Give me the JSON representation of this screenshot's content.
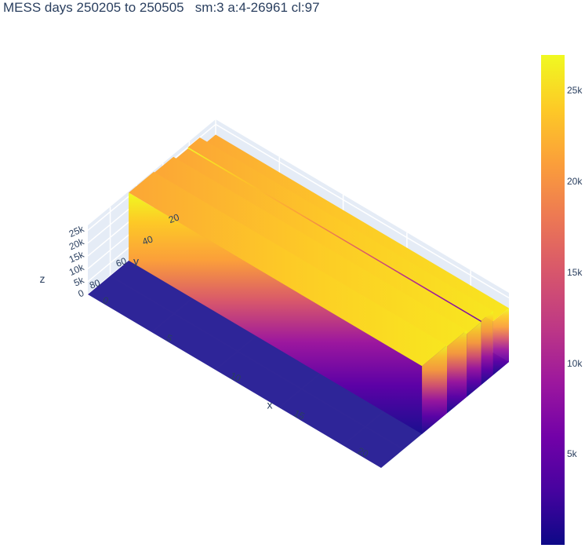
{
  "title": "MESS days 250205 to 250505   sm:3 a:4-26961 cl:97",
  "chart_data": {
    "type": "surface",
    "title": "MESS days 250205 to 250505   sm:3 a:4-26961 cl:97",
    "x": {
      "label": "x",
      "range": [
        0,
        23
      ],
      "ticks": [
        0,
        5,
        10,
        15,
        20
      ]
    },
    "y": {
      "label": "y",
      "range": [
        0,
        97
      ],
      "ticks": [
        20,
        40,
        60,
        80
      ]
    },
    "z": {
      "label": "z",
      "range": [
        0,
        26961
      ],
      "ticks": [
        0,
        5000,
        10000,
        15000,
        20000,
        25000
      ],
      "tick_labels": [
        "0",
        "5k",
        "10k",
        "15k",
        "20k",
        "25k"
      ]
    },
    "colorscale": "plasma",
    "colorbar": {
      "range": [
        4,
        26961
      ],
      "ticks": [
        5000,
        10000,
        15000,
        20000,
        25000
      ],
      "tick_labels": [
        "5k",
        "10k",
        "15k",
        "20k",
        "25k"
      ]
    },
    "ridges": [
      {
        "y_start": 0,
        "y_end": 12,
        "height": 21000
      },
      {
        "y_start": 12,
        "y_end": 21,
        "height": 25000
      },
      {
        "y_start": 21,
        "y_end": 32,
        "height": 24500
      },
      {
        "y_start": 32,
        "y_end": 47,
        "height": 26000
      },
      {
        "y_start": 47,
        "y_end": 66,
        "height": 26500
      }
    ],
    "floor_value": 4,
    "ridge_x_range": [
      0,
      23
    ]
  }
}
